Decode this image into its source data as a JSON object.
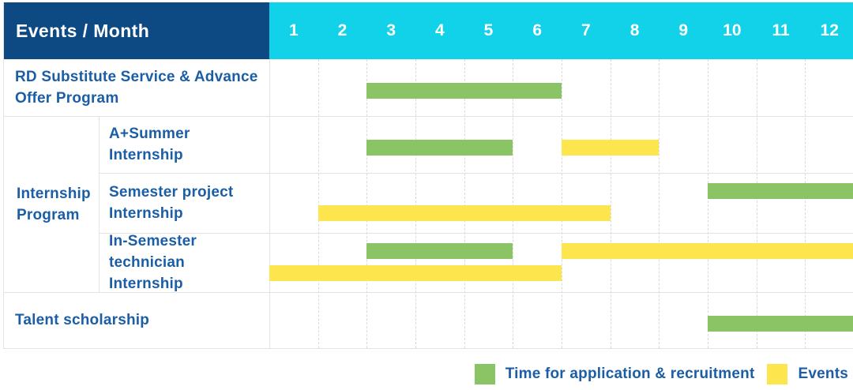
{
  "header": {
    "title": "Events / Month",
    "months": [
      "1",
      "2",
      "3",
      "4",
      "5",
      "6",
      "7",
      "8",
      "9",
      "10",
      "11",
      "12"
    ]
  },
  "colors": {
    "header_bg": "#0d4a84",
    "months_bg": "#12d2e9",
    "application_green": "#8ac464",
    "events_yellow": "#fde54d",
    "label_text": "#1b5ea6",
    "grid_line": "#e3e3e3",
    "month_divider": "#d9d9d9",
    "header_text": "#ffffff"
  },
  "legend": {
    "items": [
      {
        "label": "Time for application & recruitment",
        "series": "application",
        "color": "#8ac464"
      },
      {
        "label": "Events",
        "series": "events",
        "color": "#fde54d"
      }
    ]
  },
  "chart_data": {
    "type": "bar",
    "variant": "gantt-timeline",
    "title": "Events / Month",
    "x_axis": {
      "unit": "month",
      "ticks": [
        1,
        2,
        3,
        4,
        5,
        6,
        7,
        8,
        9,
        10,
        11,
        12
      ],
      "range": [
        1,
        12
      ]
    },
    "legend": [
      "Time for application & recruitment",
      "Events"
    ],
    "group_label": "Internship Program",
    "rows": [
      {
        "event": "RD Substitute Service & Advance Offer Program",
        "group": null,
        "bars": [
          {
            "series": "Time for application & recruitment",
            "color": "green",
            "start_month": 3,
            "end_month": 6,
            "lane": "single"
          }
        ]
      },
      {
        "event": "A+Summer Internship",
        "group": "Internship Program",
        "bars": [
          {
            "series": "Time for application & recruitment",
            "color": "green",
            "start_month": 3,
            "end_month": 5,
            "lane": "single"
          },
          {
            "series": "Events",
            "color": "yellow",
            "start_month": 7,
            "end_month": 8,
            "lane": "single"
          }
        ]
      },
      {
        "event": "Semester project Internship",
        "group": "Internship Program",
        "bars": [
          {
            "series": "Time for application & recruitment",
            "color": "green",
            "start_month": 10,
            "end_month": 12,
            "lane": "top"
          },
          {
            "series": "Events",
            "color": "yellow",
            "start_month": 2,
            "end_month": 7,
            "lane": "bottom"
          }
        ]
      },
      {
        "event": "In-Semester technician Internship",
        "group": "Internship Program",
        "bars": [
          {
            "series": "Time for application & recruitment",
            "color": "green",
            "start_month": 3,
            "end_month": 5,
            "lane": "top"
          },
          {
            "series": "Events",
            "color": "yellow",
            "start_month": 7,
            "end_month": 12,
            "lane": "top"
          },
          {
            "series": "Events",
            "color": "yellow",
            "start_month": 1,
            "end_month": 6,
            "lane": "bottom"
          }
        ]
      },
      {
        "event": "Talent scholarship",
        "group": null,
        "bars": [
          {
            "series": "Time for application & recruitment",
            "color": "green",
            "start_month": 10,
            "end_month": 12,
            "lane": "single"
          }
        ]
      }
    ]
  }
}
